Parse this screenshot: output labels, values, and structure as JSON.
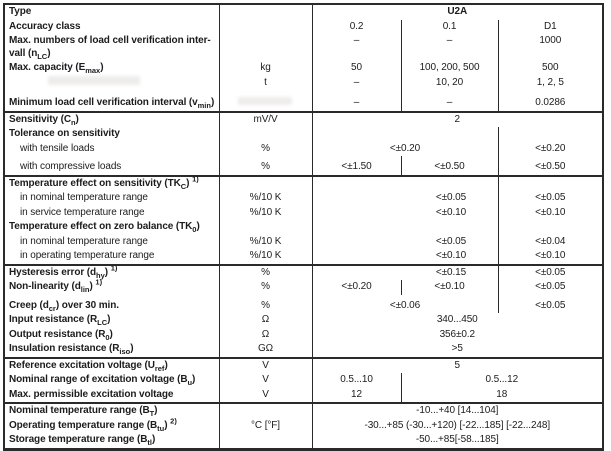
{
  "colors": {
    "border": "#2a2a2a",
    "text": "#1c1c1c",
    "background": "#ffffff"
  },
  "table": {
    "rows": [
      {
        "label": {
          "pre": "Type"
        },
        "unit": "",
        "values": [
          {
            "t": "U2A",
            "span": 3,
            "bold": true
          }
        ]
      },
      {
        "label": {
          "pre": "Accuracy class"
        },
        "unit": "",
        "values": [
          {
            "t": "0.2",
            "sep": true
          },
          {
            "t": "0.1",
            "sep": true
          },
          {
            "t": "D1"
          }
        ]
      },
      {
        "label": {
          "pre": "Max. numbers of load cell verification inter-vall (n",
          "sub": "LC",
          "post": ")"
        },
        "unit": "",
        "values": [
          {
            "t": "–",
            "sep": true
          },
          {
            "t": "–",
            "sep": true
          },
          {
            "t": "1000"
          }
        ]
      },
      {
        "label": {
          "pre": "Max. capacity (E",
          "sub": "max",
          "post": ")"
        },
        "unit": "kg",
        "values": [
          {
            "t": "50",
            "sep": true
          },
          {
            "t": "100, 200, 500",
            "sep": true
          },
          {
            "t": "500"
          }
        ]
      },
      {
        "label": {},
        "unit": "t",
        "values": [
          {
            "t": "–",
            "sep": true
          },
          {
            "t": "10, 20",
            "sep": true
          },
          {
            "t": "1, 2, 5"
          }
        ]
      },
      {
        "gap": 6,
        "label": {
          "pre": "Minimum load cell verification interval (v",
          "sub": "min",
          "post": ")"
        },
        "unit": "",
        "values": [
          {
            "t": "–",
            "sep": true
          },
          {
            "t": "–",
            "sep": true
          },
          {
            "t": "0.0286"
          }
        ]
      },
      {
        "sec": true,
        "label": {
          "pre": "Sensitivity (C",
          "sub": "n",
          "post": ")"
        },
        "unit": "mV/V",
        "values": [
          {
            "t": "2",
            "span": 3
          }
        ]
      },
      {
        "label": {
          "pre": "Tolerance on sensitivity"
        },
        "unit": "",
        "values": [
          {
            "t": "",
            "span": 2,
            "sep": true
          },
          {
            "t": ""
          }
        ]
      },
      {
        "ind": true,
        "label": {
          "pre": "with tensile loads"
        },
        "unit": "%",
        "values": [
          {
            "t": "<±0.20",
            "span": 2,
            "sep": true
          },
          {
            "t": "<±0.20"
          }
        ]
      },
      {
        "ind": true,
        "gap": 4,
        "label": {
          "pre": "with compressive loads"
        },
        "unit": "%",
        "values": [
          {
            "t": "<±1.50",
            "sep": true
          },
          {
            "t": "<±0.50",
            "sep": true
          },
          {
            "t": "<±0.50"
          }
        ]
      },
      {
        "sec": true,
        "label": {
          "pre": "Temperature effect on sensitivity (TK",
          "sub": "C",
          "post": ") ",
          "sup": "1)"
        },
        "unit": "",
        "values": [
          {
            "t": "",
            "span": 2,
            "sep": true
          },
          {
            "t": ""
          }
        ]
      },
      {
        "ind": true,
        "label": {
          "pre": "in nominal temperature range"
        },
        "unit": "%/10 K",
        "values": [
          {
            "t": "<±0.05",
            "span": 2,
            "sep": true,
            "shift": true
          },
          {
            "t": "<±0.05"
          }
        ]
      },
      {
        "ind": true,
        "label": {
          "pre": "in service temperature range"
        },
        "unit": "%/10 K",
        "values": [
          {
            "t": "<±0.10",
            "span": 2,
            "sep": true,
            "shift": true
          },
          {
            "t": "<±0.10"
          }
        ]
      },
      {
        "label": {
          "pre": "Temperature effect on zero balance (TK",
          "sub": "0",
          "post": ")"
        },
        "unit": "",
        "values": [
          {
            "t": "",
            "span": 2,
            "sep": true
          },
          {
            "t": ""
          }
        ]
      },
      {
        "ind": true,
        "label": {
          "pre": "in nominal temperature range"
        },
        "unit": "%/10 K",
        "values": [
          {
            "t": "<±0.05",
            "span": 2,
            "sep": true,
            "shift": true
          },
          {
            "t": "<±0.04"
          }
        ]
      },
      {
        "ind": true,
        "label": {
          "pre": "in operating temperature range"
        },
        "unit": "%/10 K",
        "values": [
          {
            "t": "<±0.10",
            "span": 2,
            "sep": true,
            "shift": true
          },
          {
            "t": "<±0.10"
          }
        ]
      },
      {
        "sec": true,
        "label": {
          "pre": "Hysteresis error (d",
          "sub": "hy",
          "post": ") ",
          "sup": "1)"
        },
        "unit": "%",
        "values": [
          {
            "t": "<±0.15",
            "span": 2,
            "sep": true,
            "shift": true
          },
          {
            "t": "<±0.05"
          }
        ]
      },
      {
        "label": {
          "pre": "Non-linearity (d",
          "sub": "lin",
          "post": ") ",
          "sup": "1)"
        },
        "unit": "%",
        "values": [
          {
            "t": "<±0.20",
            "sep": true
          },
          {
            "t": "<±0.10",
            "sep": true
          },
          {
            "t": "<±0.05"
          }
        ]
      },
      {
        "gap": 4,
        "label": {
          "pre": "Creep (d",
          "sub": "cr",
          "post": ") over 30 min."
        },
        "unit": "%",
        "values": [
          {
            "t": "<±0.06",
            "span": 2,
            "sep": true
          },
          {
            "t": "<±0.05"
          }
        ]
      },
      {
        "label": {
          "pre": "Input resistance (R",
          "sub": "LC",
          "post": ")"
        },
        "unit": "Ω",
        "values": [
          {
            "t": "340...450",
            "span": 3
          }
        ]
      },
      {
        "label": {
          "pre": "Output resistance (R",
          "sub": "0",
          "post": ")"
        },
        "unit": "Ω",
        "values": [
          {
            "t": "356±0.2",
            "span": 3
          }
        ]
      },
      {
        "label": {
          "pre": "Insulation resistance (R",
          "sub": "iso",
          "post": ")"
        },
        "unit": "GΩ",
        "values": [
          {
            "t": ">5",
            "span": 3
          }
        ]
      },
      {
        "sec": true,
        "label": {
          "pre": "Reference excitation voltage (U",
          "sub": "ref",
          "post": ")"
        },
        "unit": "V",
        "values": [
          {
            "t": "5",
            "span": 3
          }
        ]
      },
      {
        "label": {
          "pre": "Nominal range of excitation voltage (B",
          "sub": "u",
          "post": ")"
        },
        "unit": "V",
        "values": [
          {
            "t": "0.5...10",
            "sep": true
          },
          {
            "t": "0.5...12",
            "span": 2
          }
        ]
      },
      {
        "label": {
          "pre": "Max. permissible excitation voltage"
        },
        "unit": "V",
        "values": [
          {
            "t": "12",
            "sep": true
          },
          {
            "t": "18",
            "span": 2
          }
        ]
      },
      {
        "sec": true,
        "label": {
          "pre": "Nominal temperature range (B",
          "sub": "T",
          "post": ")"
        },
        "unit": "",
        "values": [
          {
            "t": "-10...+40 [14...104]",
            "span": 3
          }
        ]
      },
      {
        "label": {
          "pre": "Operating temperature range (B",
          "sub": "tu",
          "post": ") ",
          "sup": "2)"
        },
        "unit": "°C [°F]",
        "values": [
          {
            "t": "-30...+85 (-30...+120) [-22...185] [-22...248]",
            "span": 3
          }
        ]
      },
      {
        "label": {
          "pre": "Storage temperature range (B",
          "sub": "tl",
          "post": ")"
        },
        "unit": "",
        "values": [
          {
            "t": "-50...+85[-58...185]",
            "span": 3
          }
        ]
      }
    ]
  }
}
